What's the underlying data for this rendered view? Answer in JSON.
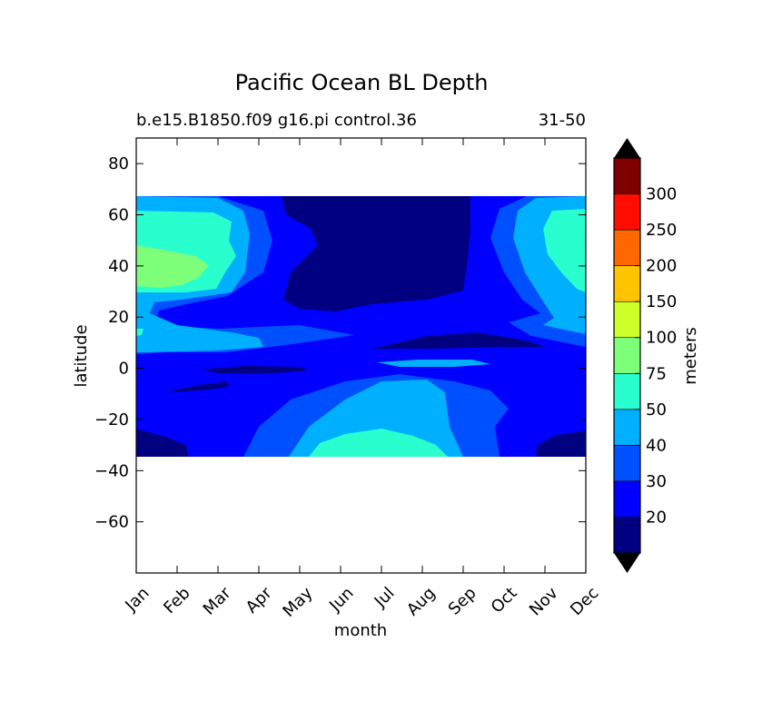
{
  "chart_data": {
    "type": "contour",
    "title": "Pacific Ocean BL Depth",
    "subtitle_left": "b.e15.B1850.f09 g16.pi control.36",
    "subtitle_right": "31-50",
    "xlabel": "month",
    "ylabel": "latitude",
    "x_ticks": [
      "Jan",
      "Feb",
      "Mar",
      "Apr",
      "May",
      "Jun",
      "Jul",
      "Aug",
      "Sep",
      "Oct",
      "Nov",
      "Dec"
    ],
    "y_ticks": [
      80,
      60,
      40,
      20,
      0,
      -20,
      -40,
      -60
    ],
    "ylim": [
      -80,
      90
    ],
    "data_lat_range": [
      -34,
      67
    ],
    "colorbar": {
      "label": "meters",
      "tick_labels": [
        "20",
        "30",
        "40",
        "50",
        "75",
        "100",
        "150",
        "200",
        "250",
        "300"
      ],
      "under_color": "#000000",
      "over_color": "#000000",
      "colors": [
        "#000080",
        "#0000ff",
        "#0050ff",
        "#00b0ff",
        "#29ffce",
        "#7dff7a",
        "#ceff29",
        "#ffc400",
        "#ff6800",
        "#ff0d00",
        "#800000"
      ]
    },
    "contour_levels_shown": [
      {
        "level": "<20",
        "color": "#000080"
      },
      {
        "level": "20-30",
        "color": "#0000ff"
      },
      {
        "level": "30-40",
        "color": "#0050ff"
      },
      {
        "level": "40-50",
        "color": "#00b0ff"
      },
      {
        "level": "50-75",
        "color": "#29ffce"
      },
      {
        "level": "75-100",
        "color": "#7dff7a"
      }
    ]
  }
}
